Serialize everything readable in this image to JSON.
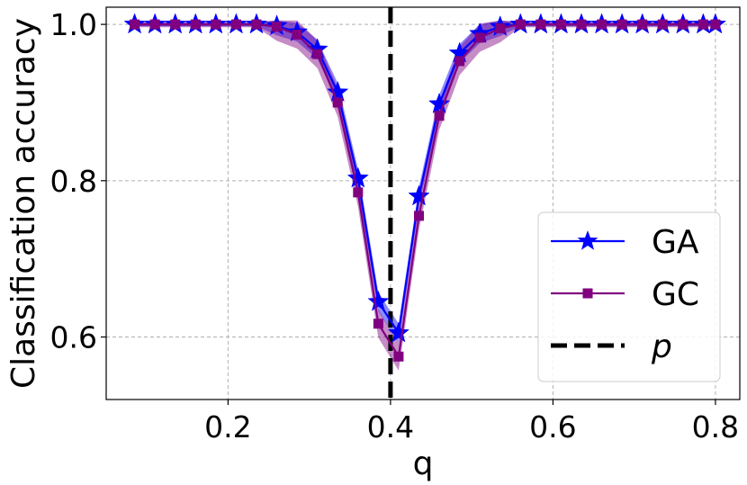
{
  "chart_data": {
    "type": "line",
    "title": "",
    "xlabel": "q",
    "ylabel": "Classification accuracy",
    "xlim": [
      0.05,
      0.83
    ],
    "ylim": [
      0.52,
      1.022
    ],
    "xticks": [
      "0.2",
      "0.4",
      "0.6",
      "0.8"
    ],
    "xtick_values": [
      0.2,
      0.4,
      0.6,
      0.8
    ],
    "yticks": [
      "0.6",
      "0.8",
      "1.0"
    ],
    "ytick_values": [
      0.6,
      0.8,
      1.0
    ],
    "grid": true,
    "legend_position": "bottom-right",
    "x": [
      0.085,
      0.11,
      0.135,
      0.16,
      0.185,
      0.21,
      0.235,
      0.26,
      0.285,
      0.31,
      0.335,
      0.36,
      0.385,
      0.41,
      0.435,
      0.46,
      0.485,
      0.51,
      0.535,
      0.56,
      0.585,
      0.61,
      0.635,
      0.66,
      0.685,
      0.71,
      0.735,
      0.76,
      0.785,
      0.8
    ],
    "series": [
      {
        "name": "GA",
        "color": "#0000ff",
        "marker": "star",
        "values": [
          1.0,
          1.0,
          1.0,
          1.0,
          1.0,
          1.0,
          1.0,
          0.998,
          0.99,
          0.968,
          0.913,
          0.803,
          0.645,
          0.605,
          0.78,
          0.898,
          0.963,
          0.988,
          0.997,
          1.0,
          1.0,
          1.0,
          1.0,
          1.0,
          1.0,
          1.0,
          1.0,
          1.0,
          1.0,
          1.0
        ],
        "band": 0.012
      },
      {
        "name": "GC",
        "color": "#800080",
        "marker": "square",
        "values": [
          1.0,
          1.0,
          1.0,
          1.0,
          1.0,
          1.0,
          1.0,
          0.997,
          0.987,
          0.962,
          0.9,
          0.785,
          0.617,
          0.575,
          0.755,
          0.883,
          0.953,
          0.983,
          0.995,
          1.0,
          1.0,
          1.0,
          1.0,
          1.0,
          1.0,
          1.0,
          1.0,
          1.0,
          1.0,
          1.0
        ],
        "band": 0.018
      }
    ],
    "vline": {
      "name": "p",
      "x": 0.4,
      "color": "#000000",
      "style": "dashed"
    }
  }
}
